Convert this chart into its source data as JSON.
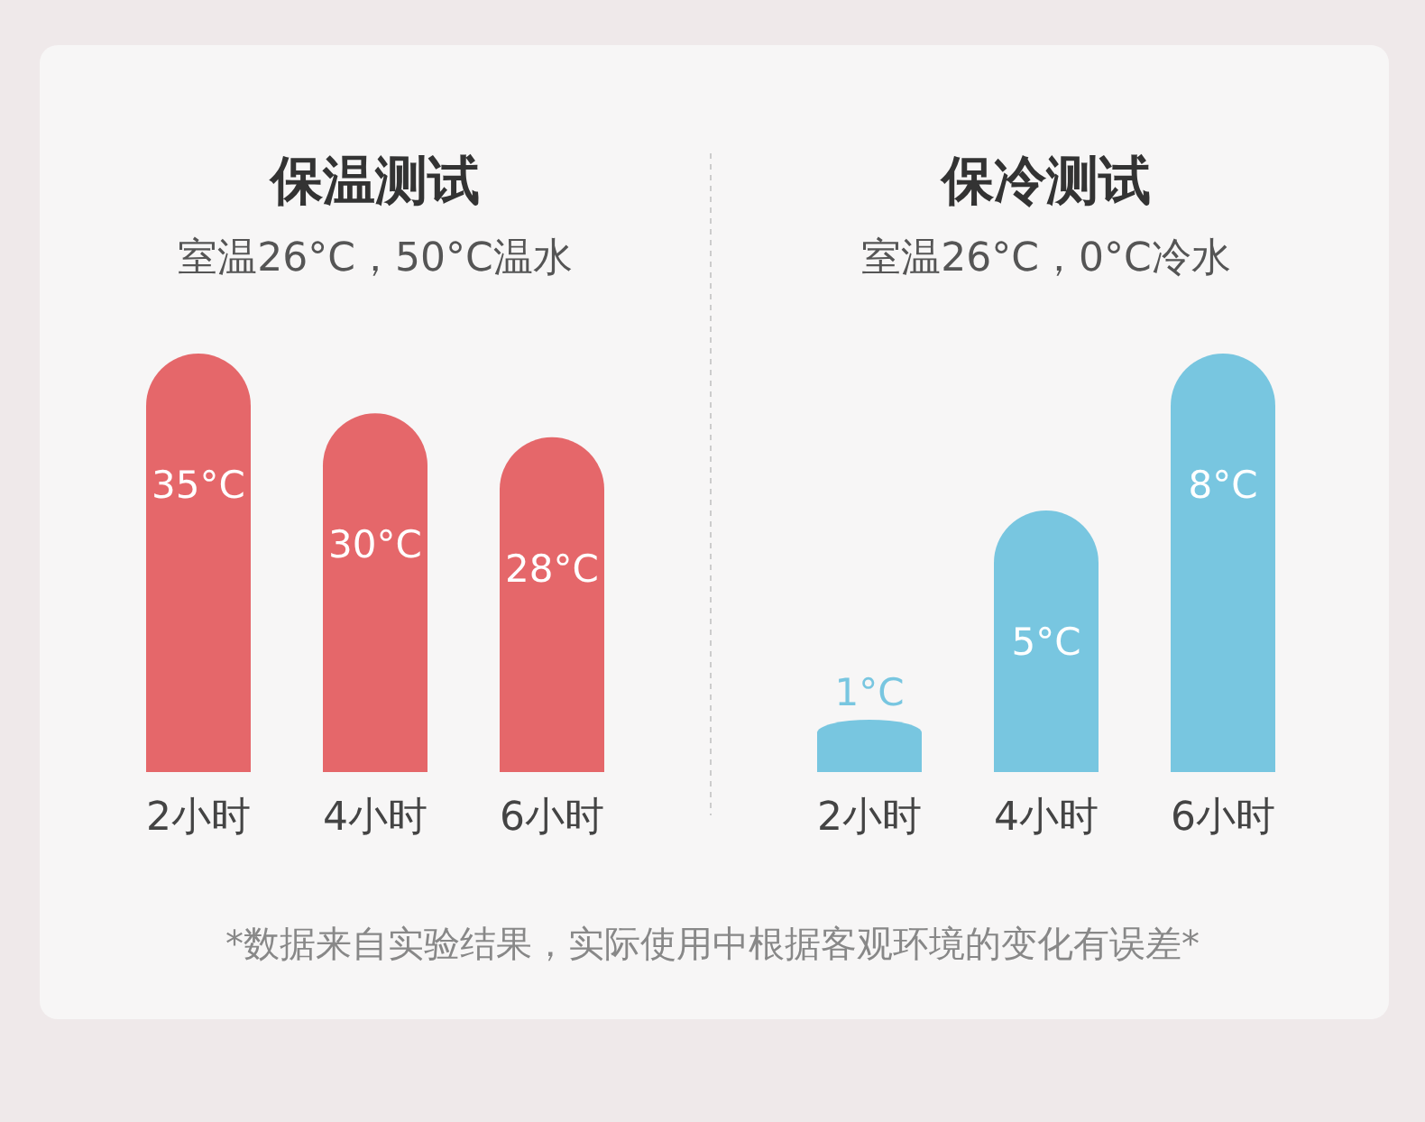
{
  "chart_data": [
    {
      "type": "bar",
      "title": "保温测试",
      "subtitle": "室温26°C，50°C温水",
      "categories": [
        "2小时",
        "4小时",
        "6小时"
      ],
      "values": [
        35,
        30,
        28
      ],
      "color": "#e5676a",
      "data_labels": true,
      "value_labels": [
        "35°C",
        "30°C",
        "28°C"
      ]
    },
    {
      "type": "bar",
      "title": "保冷测试",
      "subtitle": "室温26°C，0°C冷水",
      "categories": [
        "2小时",
        "4小时",
        "6小时"
      ],
      "values": [
        1,
        5,
        8
      ],
      "color": "#78c6e0",
      "data_labels": true,
      "value_labels": [
        "1°C",
        "5°C",
        "8°C"
      ],
      "annotations": [
        "*数据来自实验结果，实际使用中根据客观环境的变化有误差*"
      ]
    }
  ]
}
